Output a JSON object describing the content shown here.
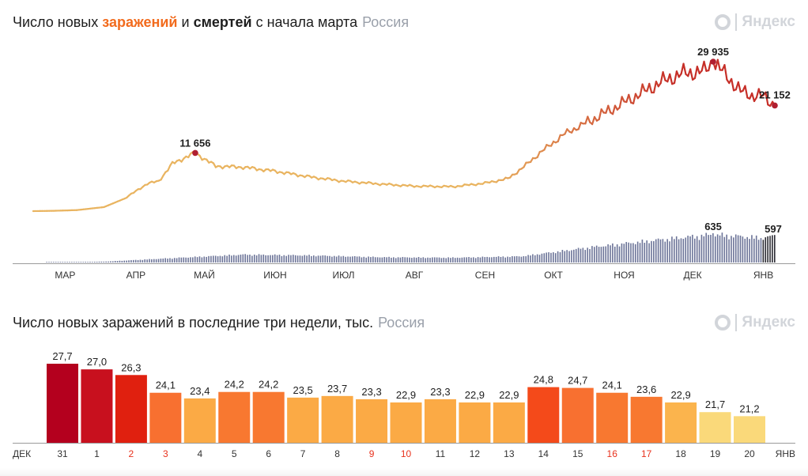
{
  "top_chart": {
    "title_part1": "Число новых ",
    "title_infections": "заражений",
    "title_part2": " и ",
    "title_deaths": "смертей",
    "title_part3": " с начала марта",
    "region": "Россия"
  },
  "bottom_chart": {
    "title": "Число новых заражений в последние три недели, тыс.",
    "region": "Россия"
  },
  "logo_text": "Яндекс",
  "chart_data": [
    {
      "type": "line",
      "title": "Число новых заражений и смертей с начала марта",
      "series": [
        {
          "name": "заражения",
          "x": [
            "01.03",
            "10.03",
            "20.03",
            "01.04",
            "10.04",
            "20.04",
            "25.04",
            "01.05",
            "06.05",
            "11.05",
            "20.05",
            "01.06",
            "15.06",
            "01.07",
            "15.07",
            "01.08",
            "15.08",
            "01.09",
            "15.09",
            "25.09",
            "01.10",
            "10.10",
            "20.10",
            "01.11",
            "10.11",
            "20.11",
            "01.12",
            "10.12",
            "20.12",
            "24.12",
            "30.12",
            "05.01",
            "10.01",
            "15.01",
            "20.01"
          ],
          "values": [
            0,
            60,
            200,
            800,
            2500,
            5500,
            6000,
            9500,
            10600,
            11656,
            9000,
            8800,
            8000,
            6800,
            6000,
            5400,
            5000,
            4900,
            5600,
            6500,
            8500,
            12000,
            15500,
            18300,
            20500,
            23000,
            25800,
            27500,
            28000,
            29935,
            27000,
            24000,
            23200,
            23000,
            21152
          ]
        },
        {
          "name": "смерти",
          "x": [
            "01.03",
            "01.04",
            "01.05",
            "01.06",
            "01.07",
            "01.08",
            "01.09",
            "01.10",
            "01.11",
            "01.12",
            "24.12",
            "15.01",
            "20.01"
          ],
          "values": [
            0,
            20,
            100,
            180,
            160,
            120,
            110,
            140,
            350,
            520,
            635,
            560,
            597
          ]
        }
      ],
      "annotations": [
        "11 656",
        "29 935",
        "21 152",
        "635",
        "597"
      ],
      "month_labels": [
        "МАР",
        "АПР",
        "МАЙ",
        "ИЮН",
        "ИЮЛ",
        "АВГ",
        "СЕН",
        "ОКТ",
        "НОЯ",
        "ДЕК",
        "ЯНВ"
      ],
      "colors": {
        "early": "#e9b460",
        "late": "#c62f28",
        "deaths": "#6c7498",
        "deaths_recent": "#2c2c34",
        "marker": "#b01f30"
      }
    },
    {
      "type": "bar",
      "title": "Число новых заражений в последние три недели, тыс.",
      "categories": [
        "31",
        "1",
        "2",
        "3",
        "4",
        "5",
        "6",
        "7",
        "8",
        "9",
        "10",
        "11",
        "12",
        "13",
        "14",
        "15",
        "16",
        "17",
        "18",
        "19",
        "20"
      ],
      "values": [
        27.7,
        27.0,
        26.3,
        24.1,
        23.4,
        24.2,
        24.2,
        23.5,
        23.7,
        23.3,
        22.9,
        23.3,
        22.9,
        22.9,
        24.8,
        24.7,
        24.1,
        23.6,
        22.9,
        21.7,
        21.2
      ],
      "value_labels": [
        "27,7",
        "27,0",
        "26,3",
        "24,1",
        "23,4",
        "24,2",
        "24,2",
        "23,5",
        "23,7",
        "23,3",
        "22,9",
        "23,3",
        "22,9",
        "22,9",
        "24,8",
        "24,7",
        "24,1",
        "23,6",
        "22,9",
        "21,7",
        "21,2"
      ],
      "holiday_categories": [
        "2",
        "3",
        "9",
        "10",
        "16",
        "17"
      ],
      "start_label": "ДЕК",
      "end_label": "ЯНВ",
      "colors": [
        "#b4001e",
        "#c8101e",
        "#e0200f",
        "#f87030",
        "#fbaa45",
        "#f87830",
        "#f87830",
        "#fbaa45",
        "#fbaa45",
        "#fbaa45",
        "#fbaa45",
        "#fbaa45",
        "#fbaa45",
        "#fbaa45",
        "#f44a1a",
        "#f87030",
        "#f87830",
        "#f87830",
        "#fbb44d",
        "#fad97a",
        "#fad97a"
      ],
      "weekend_label_color": "#e8321d",
      "ylim": [
        0,
        30
      ]
    }
  ]
}
